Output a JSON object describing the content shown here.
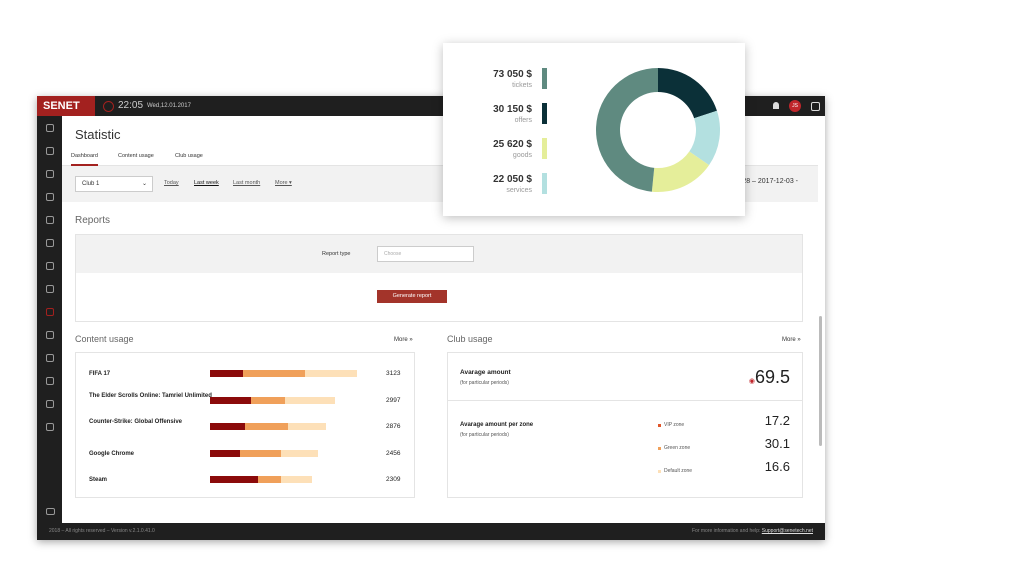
{
  "brand": {
    "red": "SE",
    "black": "NET"
  },
  "app": {
    "logo": "SENET",
    "time": "22:05",
    "date": "Wed,12.01.2017",
    "user_initials": "JS"
  },
  "page": {
    "title": "Statistic",
    "tabs": [
      "Dashboard",
      "Content usage",
      "Club usage"
    ],
    "filters": {
      "club": "Club 1",
      "links": [
        "Today",
        "Last week",
        "Last month",
        "More ▾"
      ],
      "date_range": "-28 – 2017-12-03 -"
    },
    "reports": {
      "title": "Reports",
      "report_type_label": "Report type",
      "report_type_placeholder": "Choose",
      "button": "Generate report"
    },
    "content_usage": {
      "title": "Content usage",
      "more": "More »",
      "colors": [
        "#8b0a0a",
        "#f0a05a",
        "#fde0b8"
      ],
      "rows": [
        {
          "name": "FIFA 17",
          "segments": [
            22,
            41,
            35
          ],
          "total": 3123
        },
        {
          "name": "The Elder Scrolls Online: Tamriel Unlimited",
          "segments": [
            27,
            23,
            33
          ],
          "total": 2997
        },
        {
          "name": "Counter-Strike: Global Offensive",
          "segments": [
            23,
            29,
            25
          ],
          "total": 2876
        },
        {
          "name": "Google Chrome",
          "segments": [
            20,
            27,
            25
          ],
          "total": 2456
        },
        {
          "name": "Steam",
          "segments": [
            32,
            15,
            21
          ],
          "total": 2309
        }
      ]
    },
    "club_usage": {
      "title": "Club usage",
      "more": "More »",
      "average": {
        "label": "Avarage amount",
        "note": "(for particular periods)",
        "value": 69.5
      },
      "per_zone": {
        "label": "Avarage amount per zone",
        "note": "(for particular periods)",
        "zones": [
          {
            "name": "VIP zone",
            "color": "#e0562a",
            "value": 17.2
          },
          {
            "name": "Green zone",
            "color": "#f0a05a",
            "value": 30.1
          },
          {
            "name": "Default zone",
            "color": "#fde0b8",
            "value": 16.6
          }
        ]
      }
    },
    "footer": {
      "left": "2018 – All rights reserved – Version v.2.1.0.41.0",
      "right_prefix": "For more information and help:",
      "right_link": "Support@senetech.net"
    }
  },
  "chart_data": {
    "type": "donut",
    "categories": [
      "tickets",
      "offers",
      "goods",
      "services"
    ],
    "values": [
      73050,
      30150,
      25620,
      22050
    ],
    "value_labels": [
      "73 050 $",
      "30 150 $",
      "25 620 $",
      "22 050 $"
    ],
    "colors": [
      "#5f8a80",
      "#0b3038",
      "#e5ee9a",
      "#b3e0e0"
    ]
  }
}
